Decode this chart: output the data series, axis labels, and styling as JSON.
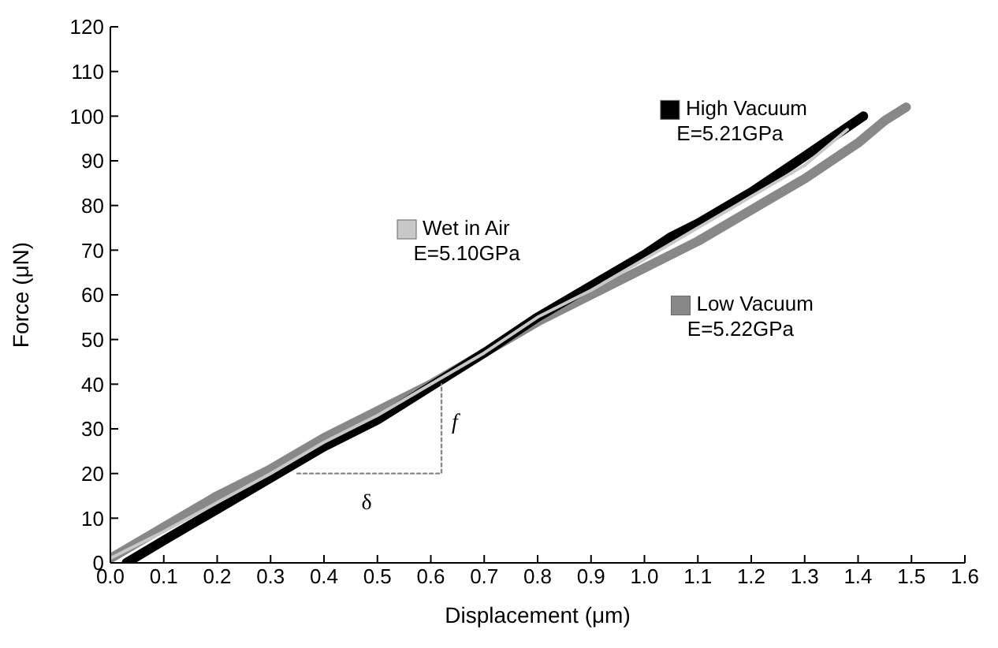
{
  "chart_data": {
    "type": "line",
    "xlabel": "Displacement (μm)",
    "ylabel": "Force (μN)",
    "xlim": [
      0,
      1.6
    ],
    "xticks": [
      {
        "value": 0,
        "label": "0.0"
      },
      0.1,
      0.2,
      0.3,
      0.4,
      0.5,
      0.6,
      0.7,
      0.8,
      0.9,
      {
        "value": 1,
        "label": "1.0"
      },
      1.1,
      1.2,
      1.3,
      1.4,
      1.5,
      1.6
    ],
    "ylim": [
      0,
      120
    ],
    "yticks": [
      0,
      10,
      20,
      30,
      40,
      50,
      60,
      70,
      80,
      90,
      100,
      110,
      120
    ],
    "legend": "right",
    "marker": "none",
    "series": [
      {
        "name": "Low Vacuum",
        "color": "#888888",
        "x": [
          0,
          0.1,
          0.2,
          0.3,
          0.4,
          0.5,
          0.6,
          0.7,
          0.8,
          0.9,
          1.0,
          1.1,
          1.2,
          1.3,
          1.4,
          1.45,
          1.49
        ],
        "values": [
          1,
          8,
          15,
          21,
          28,
          34,
          40,
          47,
          54,
          60,
          66,
          72,
          79,
          86,
          94,
          99,
          102
        ]
      },
      {
        "name": "High Vacuum",
        "color": "#000000",
        "x": [
          0.03,
          0.1,
          0.2,
          0.3,
          0.4,
          0.5,
          0.6,
          0.7,
          0.8,
          0.9,
          1.0,
          1.05,
          1.1,
          1.2,
          1.3,
          1.41
        ],
        "values": [
          0,
          5,
          12,
          19,
          26,
          32,
          39.5,
          47,
          55,
          62,
          69,
          73,
          76,
          83,
          91,
          100
        ]
      },
      {
        "name": "Wet in Air",
        "color": "#c8c8c8",
        "x": [
          0,
          0.1,
          0.2,
          0.3,
          0.4,
          0.5,
          0.6,
          0.7,
          0.8,
          0.9,
          1.0,
          1.1,
          1.2,
          1.3,
          1.38
        ],
        "values": [
          1,
          7,
          13.5,
          20,
          27,
          33,
          40,
          47,
          55,
          61,
          68,
          75,
          82,
          89,
          97
        ]
      },
      {
        "color": "#888888",
        "line_style": "dotted",
        "x": [
          0.35,
          0.62,
          0.62
        ],
        "values": [
          20,
          20,
          40
        ]
      }
    ],
    "annotations": [
      "E=5.22GPa",
      "E=5.21GPa",
      "E=5.10GPa",
      "δ",
      "f"
    ]
  }
}
